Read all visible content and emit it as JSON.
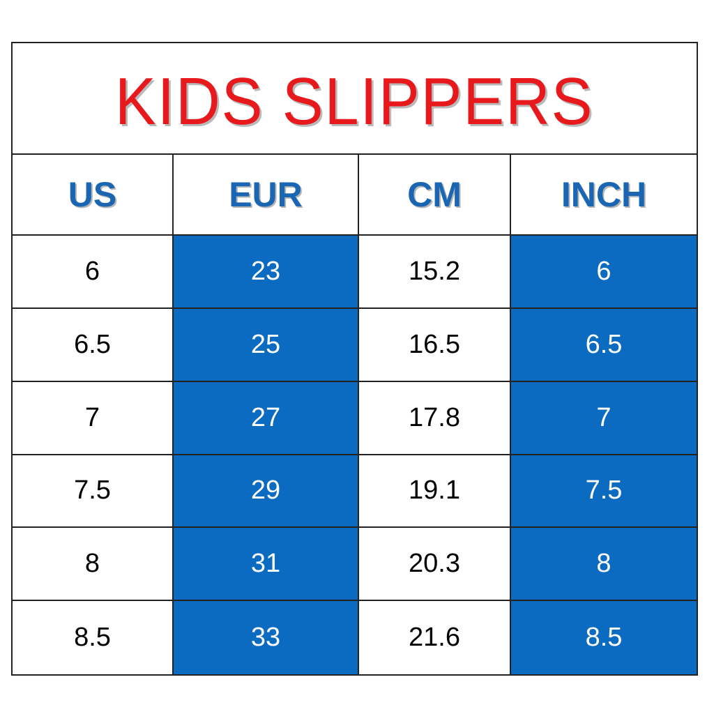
{
  "title": "KIDS SLIPPERS",
  "colors": {
    "title": "#e8191c",
    "header_text": "#1a66b3",
    "highlight_fill": "#0a6bc0",
    "border": "#222222"
  },
  "columns": [
    "US",
    "EUR",
    "CM",
    "INCH"
  ],
  "highlighted_columns": [
    "EUR",
    "INCH"
  ],
  "rows": [
    [
      "6",
      "23",
      "15.2",
      "6"
    ],
    [
      "6.5",
      "25",
      "16.5",
      "6.5"
    ],
    [
      "7",
      "27",
      "17.8",
      "7"
    ],
    [
      "7.5",
      "29",
      "19.1",
      "7.5"
    ],
    [
      "8",
      "31",
      "20.3",
      "8"
    ],
    [
      "8.5",
      "33",
      "21.6",
      "8.5"
    ]
  ]
}
